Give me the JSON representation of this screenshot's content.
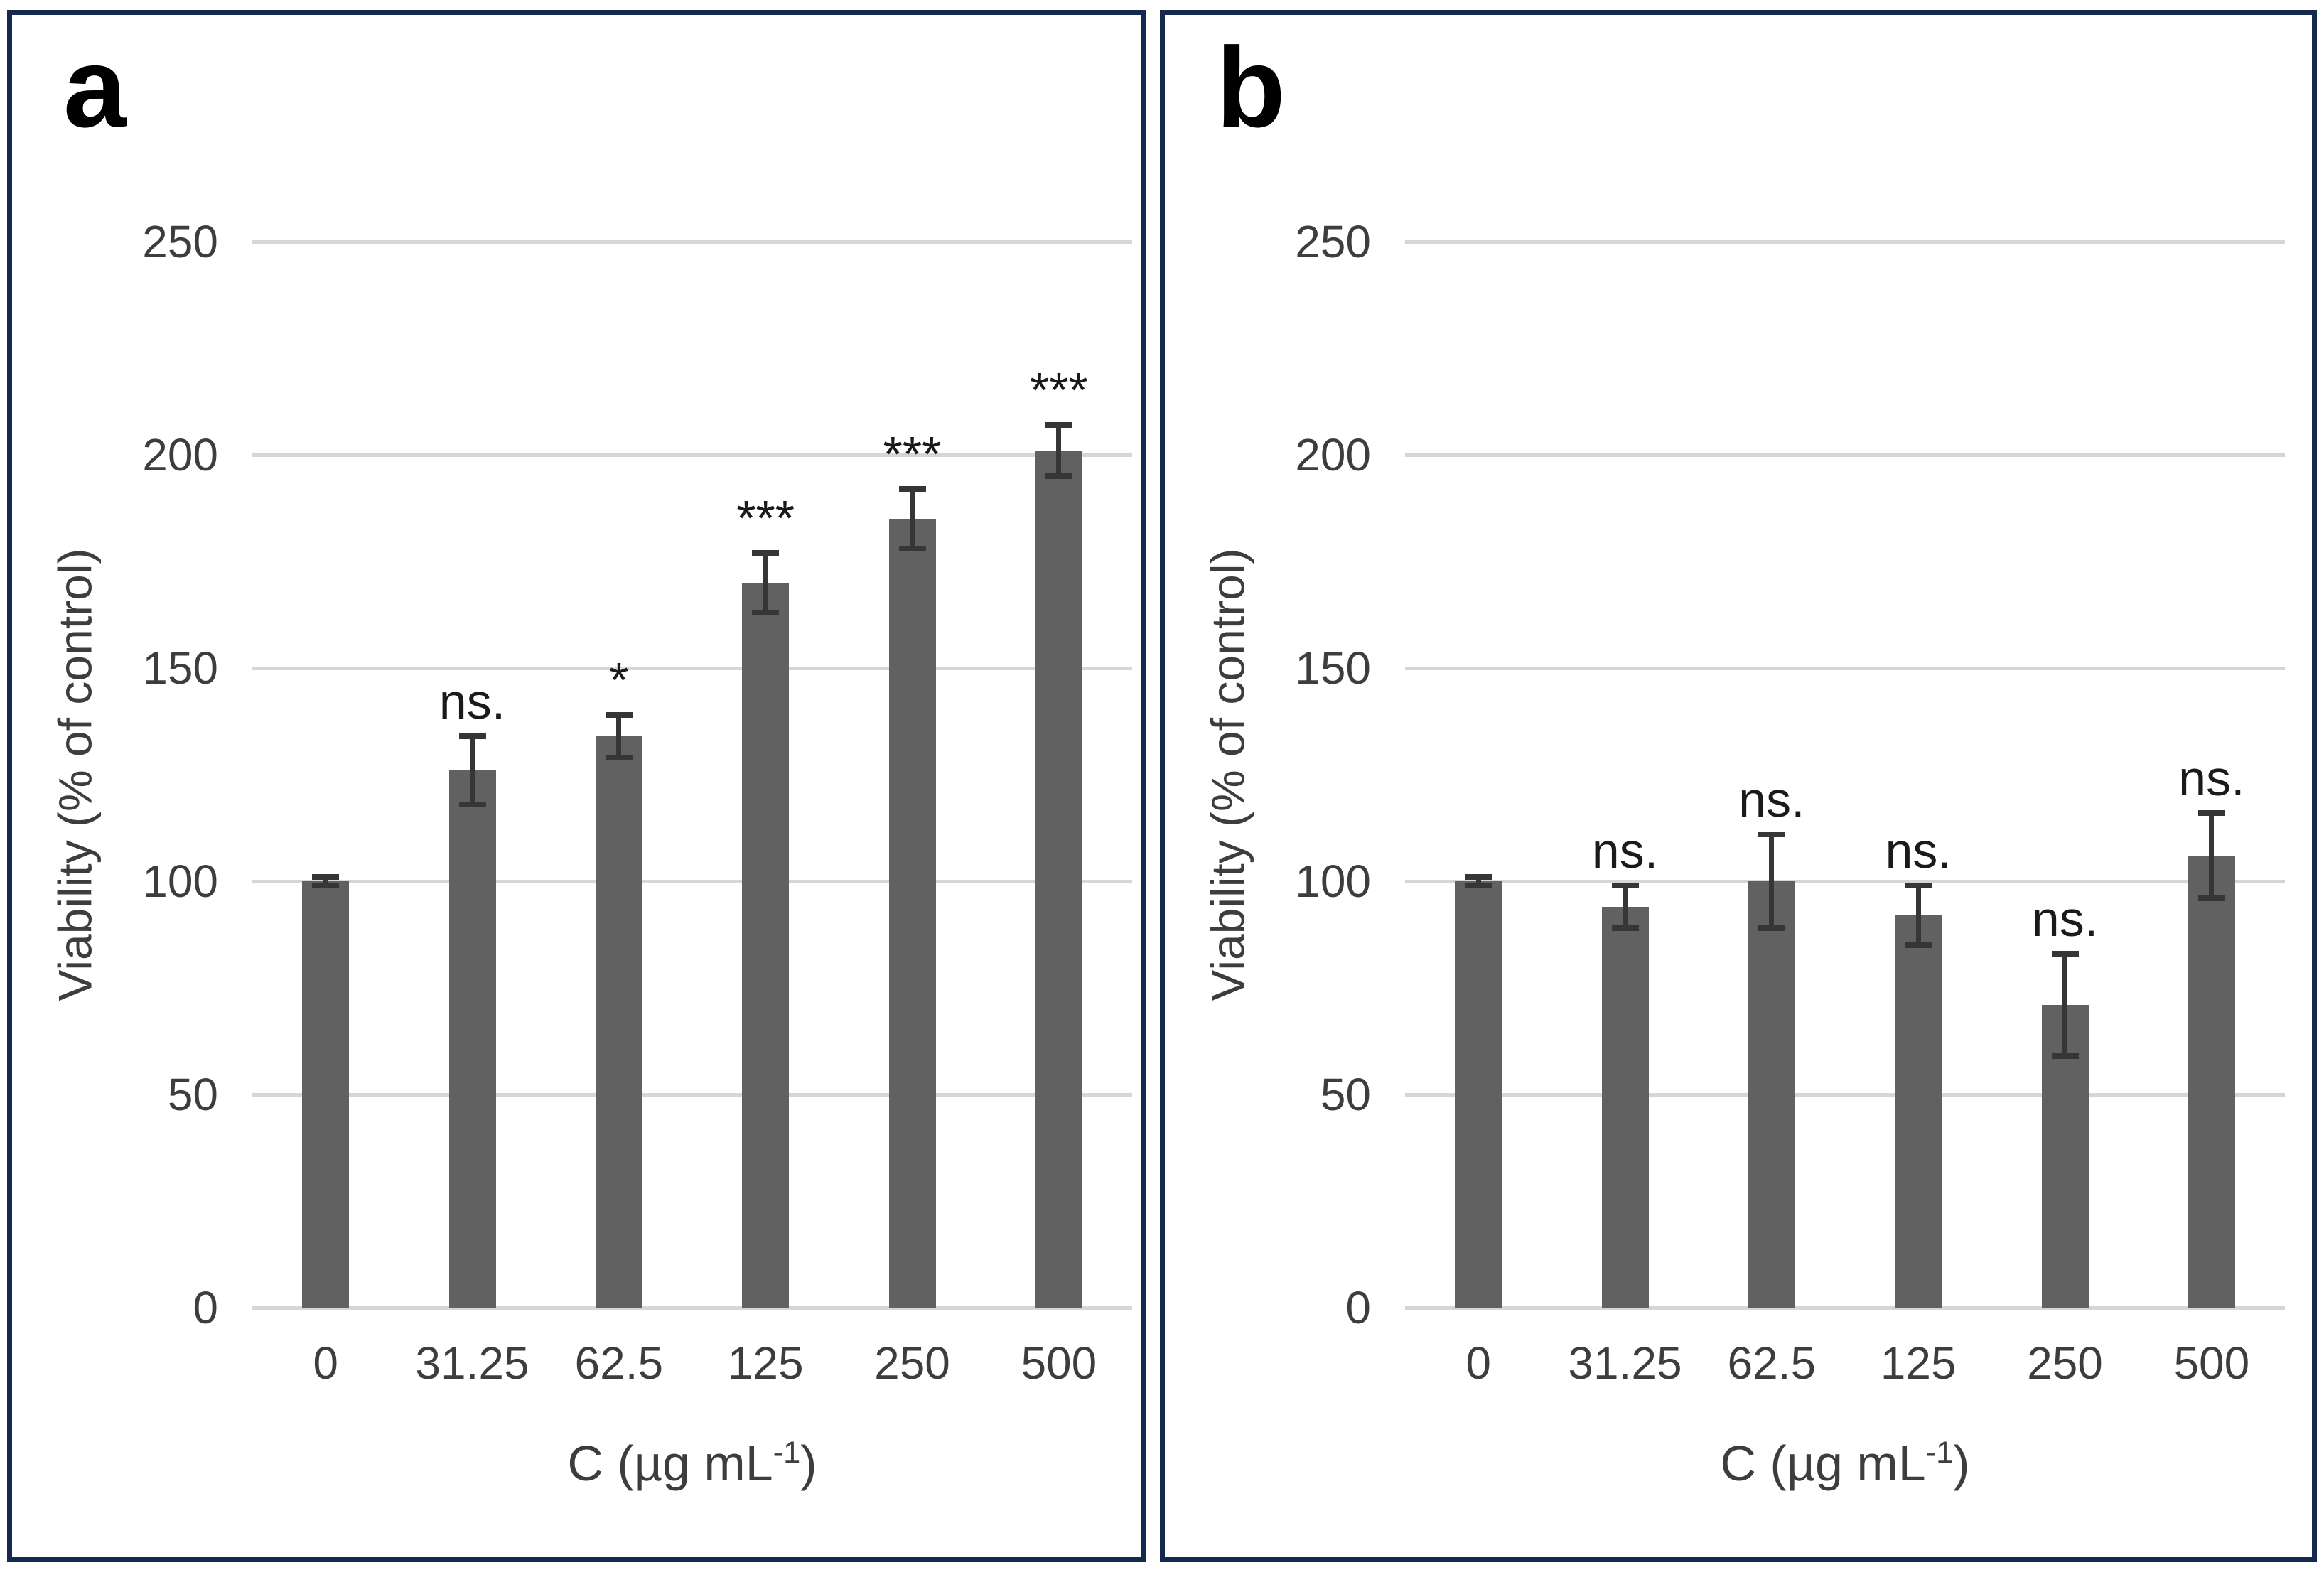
{
  "colors": {
    "bar": "#616161",
    "error_bar": "#363636",
    "gridline": "#d6d6d6",
    "axis_text": "#3d3d3d",
    "panel_border": "#14294d",
    "significance_text": "#1a1a1a",
    "background": "#ffffff"
  },
  "chart_data": [
    {
      "panel": "a",
      "type": "bar",
      "title": "",
      "xlabel": "C (µg mL⁻¹)",
      "xlabel_parts": {
        "main": "C (µg mL",
        "sup": "-1",
        "close": ")"
      },
      "ylabel": "Viability (% of control)",
      "categories": [
        "0",
        "31.25",
        "62.5",
        "125",
        "250",
        "500"
      ],
      "values": [
        100,
        126,
        134,
        170,
        185,
        201
      ],
      "errors": [
        1,
        8,
        5,
        7,
        7,
        6
      ],
      "significance": [
        "",
        "ns.",
        "*",
        "***",
        "***",
        "***"
      ],
      "yticks": [
        0,
        50,
        100,
        150,
        200,
        250
      ],
      "ylim": [
        0,
        250
      ],
      "grid": true,
      "legend": false
    },
    {
      "panel": "b",
      "type": "bar",
      "title": "",
      "xlabel": "C (µg mL⁻¹)",
      "xlabel_parts": {
        "main": "C (µg mL",
        "sup": "-1",
        "close": ")"
      },
      "ylabel": "Viability (% of control)",
      "categories": [
        "0",
        "31.25",
        "62.5",
        "125",
        "250",
        "500"
      ],
      "values": [
        100,
        94,
        100,
        92,
        71,
        106
      ],
      "errors": [
        1,
        5,
        11,
        7,
        12,
        10
      ],
      "significance": [
        "",
        "ns.",
        "ns.",
        "ns.",
        "ns.",
        "ns."
      ],
      "yticks": [
        0,
        50,
        100,
        150,
        200,
        250
      ],
      "ylim": [
        0,
        250
      ],
      "grid": true,
      "legend": false
    }
  ]
}
